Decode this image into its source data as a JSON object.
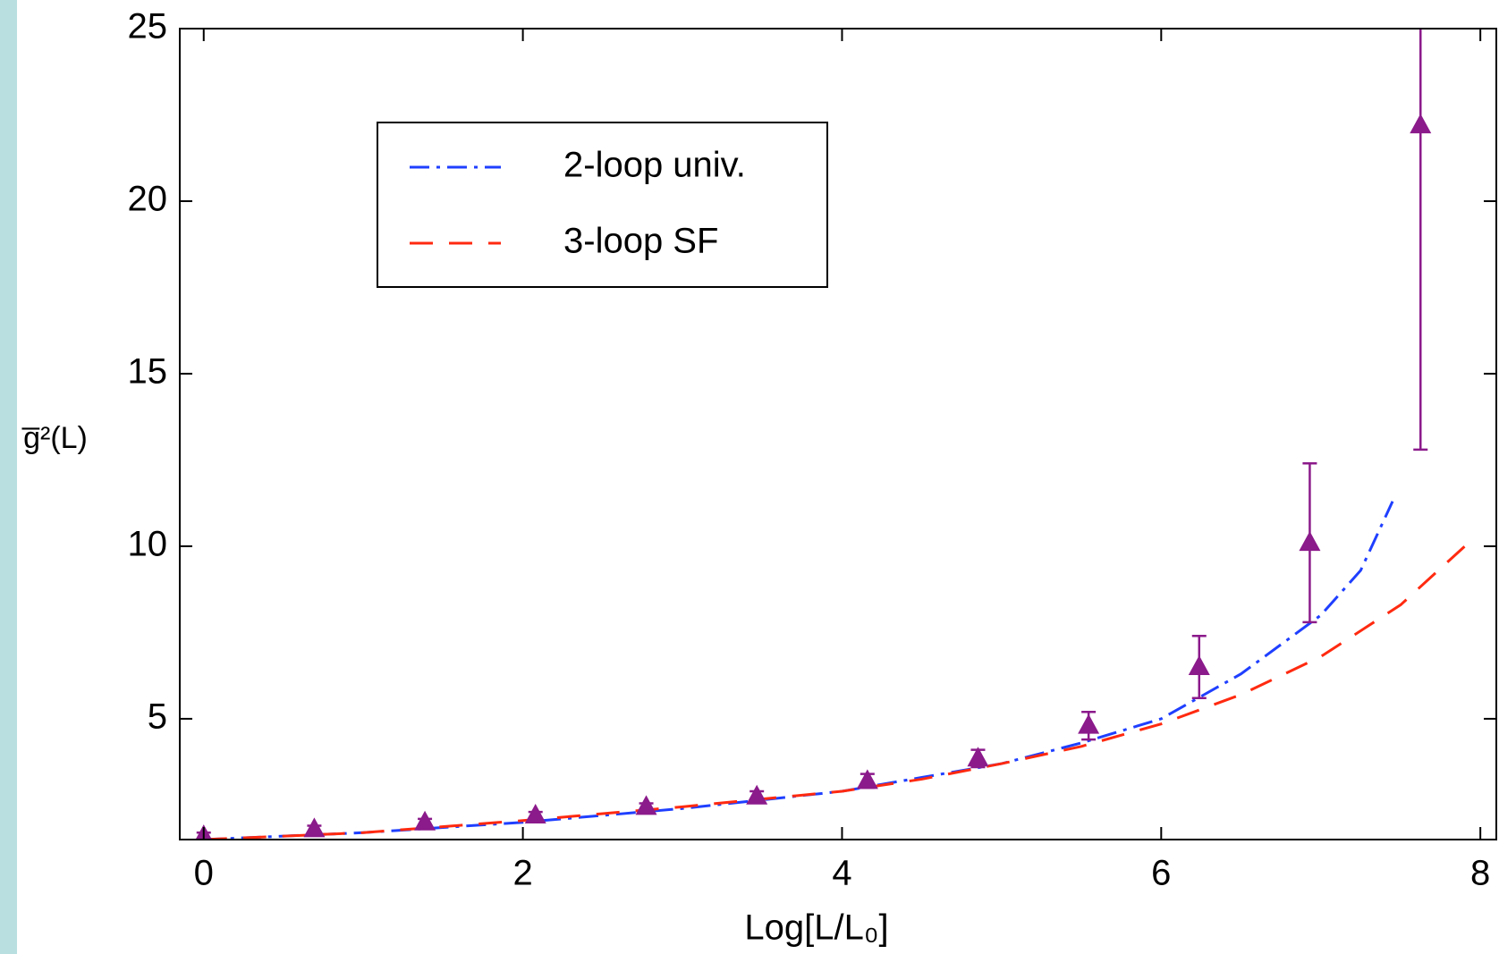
{
  "chart_data": {
    "type": "line",
    "xlabel": "Log[L/L₀]",
    "ylabel": "g̅²(L)",
    "xlim": [
      -0.15,
      8.1
    ],
    "ylim": [
      1.5,
      25
    ],
    "xticks": [
      0,
      2,
      4,
      6,
      8
    ],
    "yticks": [
      5,
      10,
      15,
      20,
      25
    ],
    "legend": "upper-left",
    "series": [
      {
        "name": "2-loop univ.",
        "color": "#1f3fff",
        "dash": "dash-dot",
        "x": [
          0,
          1,
          2,
          3,
          4,
          4.5,
          5,
          5.5,
          6,
          6.5,
          7,
          7.25,
          7.45
        ],
        "values": [
          1.5,
          1.7,
          2.0,
          2.4,
          2.9,
          3.3,
          3.7,
          4.3,
          5.0,
          6.3,
          8.0,
          9.3,
          11.3
        ]
      },
      {
        "name": "3-loop SF",
        "color": "#ff2a10",
        "dash": "dashed",
        "x": [
          0,
          1,
          2,
          3,
          4,
          4.5,
          5,
          5.5,
          6,
          6.5,
          7,
          7.5,
          7.95
        ],
        "values": [
          1.5,
          1.7,
          2.05,
          2.45,
          2.9,
          3.25,
          3.7,
          4.2,
          4.85,
          5.7,
          6.8,
          8.3,
          10.2
        ]
      }
    ],
    "points": {
      "color": "#8b1a8b",
      "x": [
        0,
        0.693,
        1.386,
        2.079,
        2.773,
        3.466,
        4.159,
        4.852,
        5.545,
        6.238,
        6.931,
        7.625
      ],
      "values": [
        1.6,
        1.8,
        2.0,
        2.2,
        2.45,
        2.75,
        3.2,
        3.85,
        4.8,
        6.5,
        10.1,
        22.2
      ],
      "errors": [
        0.1,
        0.1,
        0.1,
        0.1,
        0.1,
        0.15,
        0.2,
        0.25,
        0.4,
        0.9,
        2.3,
        9.4
      ]
    }
  }
}
